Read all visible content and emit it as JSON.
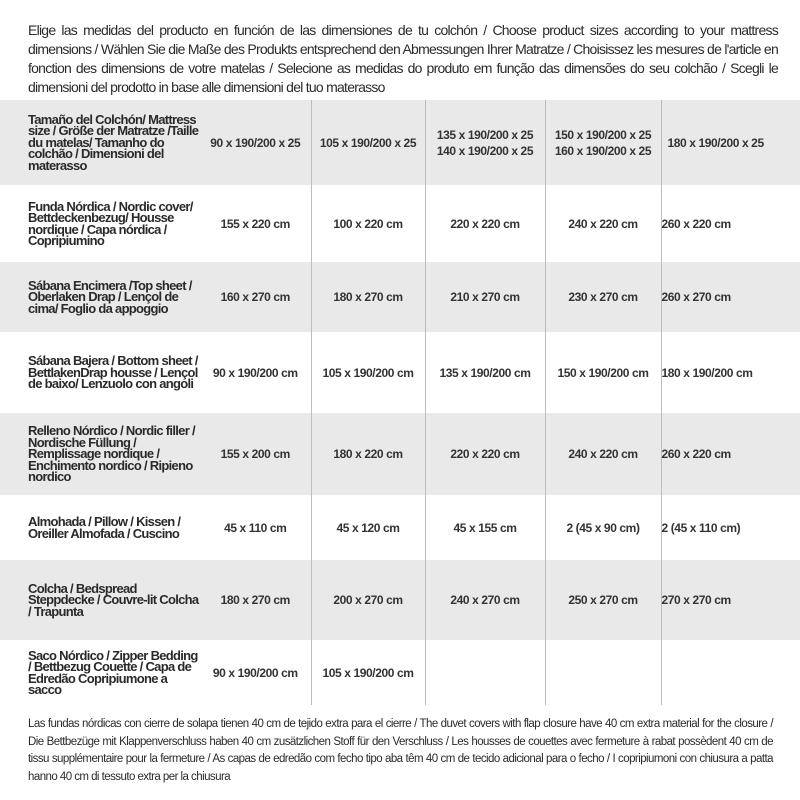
{
  "intro_text": "Elige las medidas del producto en función de las dimensiones de tu colchón / Choose product sizes according to your mattress dimensions / Wählen Sie die Maße des Produkts entsprechend den Abmessungen Ihrer Matratze / Choisissez les mesures de l'article en fonction des dimensions de votre matelas / Selecione as medidas do produto em função das dimensões do seu colchão / Scegli le dimensioni del prodotto in base alle dimensioni del tuo materasso",
  "table": {
    "header": {
      "label": "Tamaño del Colchón/ Mattress size / Größe der Matratze /Taille du matelas/ Tamanho do colchão / Dimensioni del materasso",
      "cols": [
        [
          "90 x 190/200 x 25"
        ],
        [
          "105 x 190/200 x 25"
        ],
        [
          "135 x 190/200 x 25",
          "140 x 190/200 x 25"
        ],
        [
          "150 x 190/200 x 25",
          "160 x 190/200 x 25"
        ],
        [
          "180 x 190/200 x 25"
        ]
      ]
    },
    "rows": [
      {
        "label": "Funda Nórdica / Nordic cover/ Bettdeckenbezug/ Housse nordique / Capa nórdica / Copripiumino",
        "values": [
          "155 x 220 cm",
          "100 x 220 cm",
          "220 x 220 cm",
          "240 x 220 cm",
          "260 x 220 cm"
        ]
      },
      {
        "label": "Sábana Encimera /Top sheet / Oberlaken Drap / Lençol de cima/ Foglio da appoggio",
        "values": [
          "160 x 270 cm",
          "180 x 270 cm",
          "210 x 270 cm",
          "230 x 270 cm",
          "260 x 270 cm"
        ]
      },
      {
        "label": "Sábana Bajera / Bottom sheet / BettlakenDrap housse / Lençol de baixo/ Lenzuolo con angoli",
        "values": [
          "90 x 190/200 cm",
          "105 x 190/200 cm",
          "135 x 190/200 cm",
          "150 x 190/200 cm",
          "180 x 190/200 cm"
        ]
      },
      {
        "label": "Relleno Nórdico / Nordic filler / Nordische Füllung / Remplissage nordique / Enchimento nordico / Ripieno nordico",
        "values": [
          "155 x 200 cm",
          "180 x 220 cm",
          "220 x 220 cm",
          "240 x 220 cm",
          "260 x 220 cm"
        ]
      },
      {
        "label": "Almohada / Pillow / Kissen / Oreiller Almofada / Cuscino",
        "values": [
          "45 x 110 cm",
          "45 x 120 cm",
          "45 x 155 cm",
          "2 (45 x 90 cm)",
          "2 (45 x 110 cm)"
        ]
      },
      {
        "label": "Colcha / Bedspread Steppdecke / Couvre-lit Colcha / Trapunta",
        "values": [
          "180 x 270 cm",
          "200 x 270 cm",
          "240 x 270 cm",
          "250 x 270 cm",
          "270 x 270 cm"
        ]
      },
      {
        "label": "Saco Nórdico / Zipper Bedding / Bettbezug Couette / Capa de Edredão Copripiumone a sacco",
        "values": [
          "90 x 190/200 cm",
          "105 x 190/200 cm",
          "",
          "",
          ""
        ]
      }
    ]
  },
  "footer_text": "Las fundas nórdicas con cierre de solapa tienen 40 cm de tejido extra para el cierre / The duvet covers with flap closure have 40 cm extra material for the closure / Die Bettbezüge mit Klappenverschluss haben 40 cm zusätzlichen Stoff für den Verschluss / Les housses de couettes avec fermeture à rabat possèdent 40 cm de tissu supplémentaire pour la fermeture / As capas de edredão com fecho tipo aba têm 40 cm de tecido adicional para o fecho / I copripiumoni con chiusura a patta hanno 40 cm di tessuto extra per la chiusura"
}
